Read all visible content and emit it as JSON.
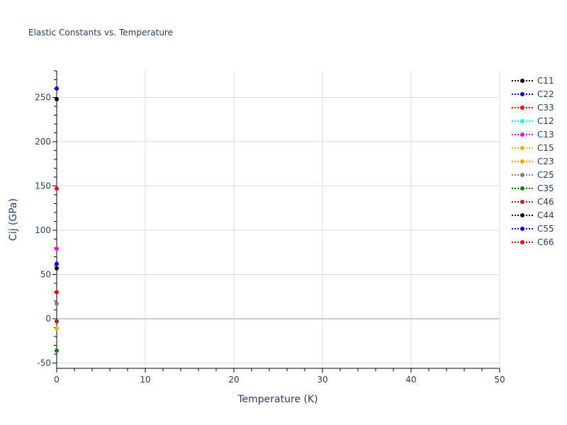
{
  "chart_data": {
    "type": "scatter",
    "mode": "lines+markers",
    "title": "Elastic Constants vs. Temperature",
    "xlabel": "Temperature (K)",
    "ylabel": "Cij (GPa)",
    "xlim": [
      0,
      50
    ],
    "ylim": [
      -56,
      280
    ],
    "xticks": [
      0,
      10,
      20,
      30,
      40,
      50
    ],
    "yticks": [
      -50,
      0,
      50,
      100,
      150,
      200,
      250
    ],
    "grid": true,
    "legend_position": "right",
    "series": [
      {
        "name": "C11",
        "color": "#000000",
        "x": [
          0
        ],
        "y": [
          248
        ]
      },
      {
        "name": "C22",
        "color": "#0000ff",
        "x": [
          0
        ],
        "y": [
          260
        ]
      },
      {
        "name": "C33",
        "color": "#ff0000",
        "x": [
          0
        ],
        "y": [
          147
        ]
      },
      {
        "name": "C12",
        "color": "#00ffff",
        "x": [
          0
        ],
        "y": [
          79
        ]
      },
      {
        "name": "C13",
        "color": "#ff00ff",
        "x": [
          0
        ],
        "y": [
          79
        ]
      },
      {
        "name": "C15",
        "color": "#e6b800",
        "x": [
          0
        ],
        "y": [
          -11
        ]
      },
      {
        "name": "C23",
        "color": "#ffa500",
        "x": [
          0
        ],
        "y": [
          62
        ]
      },
      {
        "name": "C25",
        "color": "#808080",
        "x": [
          0
        ],
        "y": [
          17
        ]
      },
      {
        "name": "C35",
        "color": "#008000",
        "x": [
          0
        ],
        "y": [
          -36
        ]
      },
      {
        "name": "C46",
        "color": "#a52a2a",
        "x": [
          0
        ],
        "y": [
          -3
        ]
      },
      {
        "name": "C44",
        "color": "#000000",
        "x": [
          0
        ],
        "y": [
          57
        ]
      },
      {
        "name": "C55",
        "color": "#0000ff",
        "x": [
          0
        ],
        "y": [
          62
        ]
      },
      {
        "name": "C66",
        "color": "#ff0000",
        "x": [
          0
        ],
        "y": [
          30
        ]
      }
    ]
  }
}
